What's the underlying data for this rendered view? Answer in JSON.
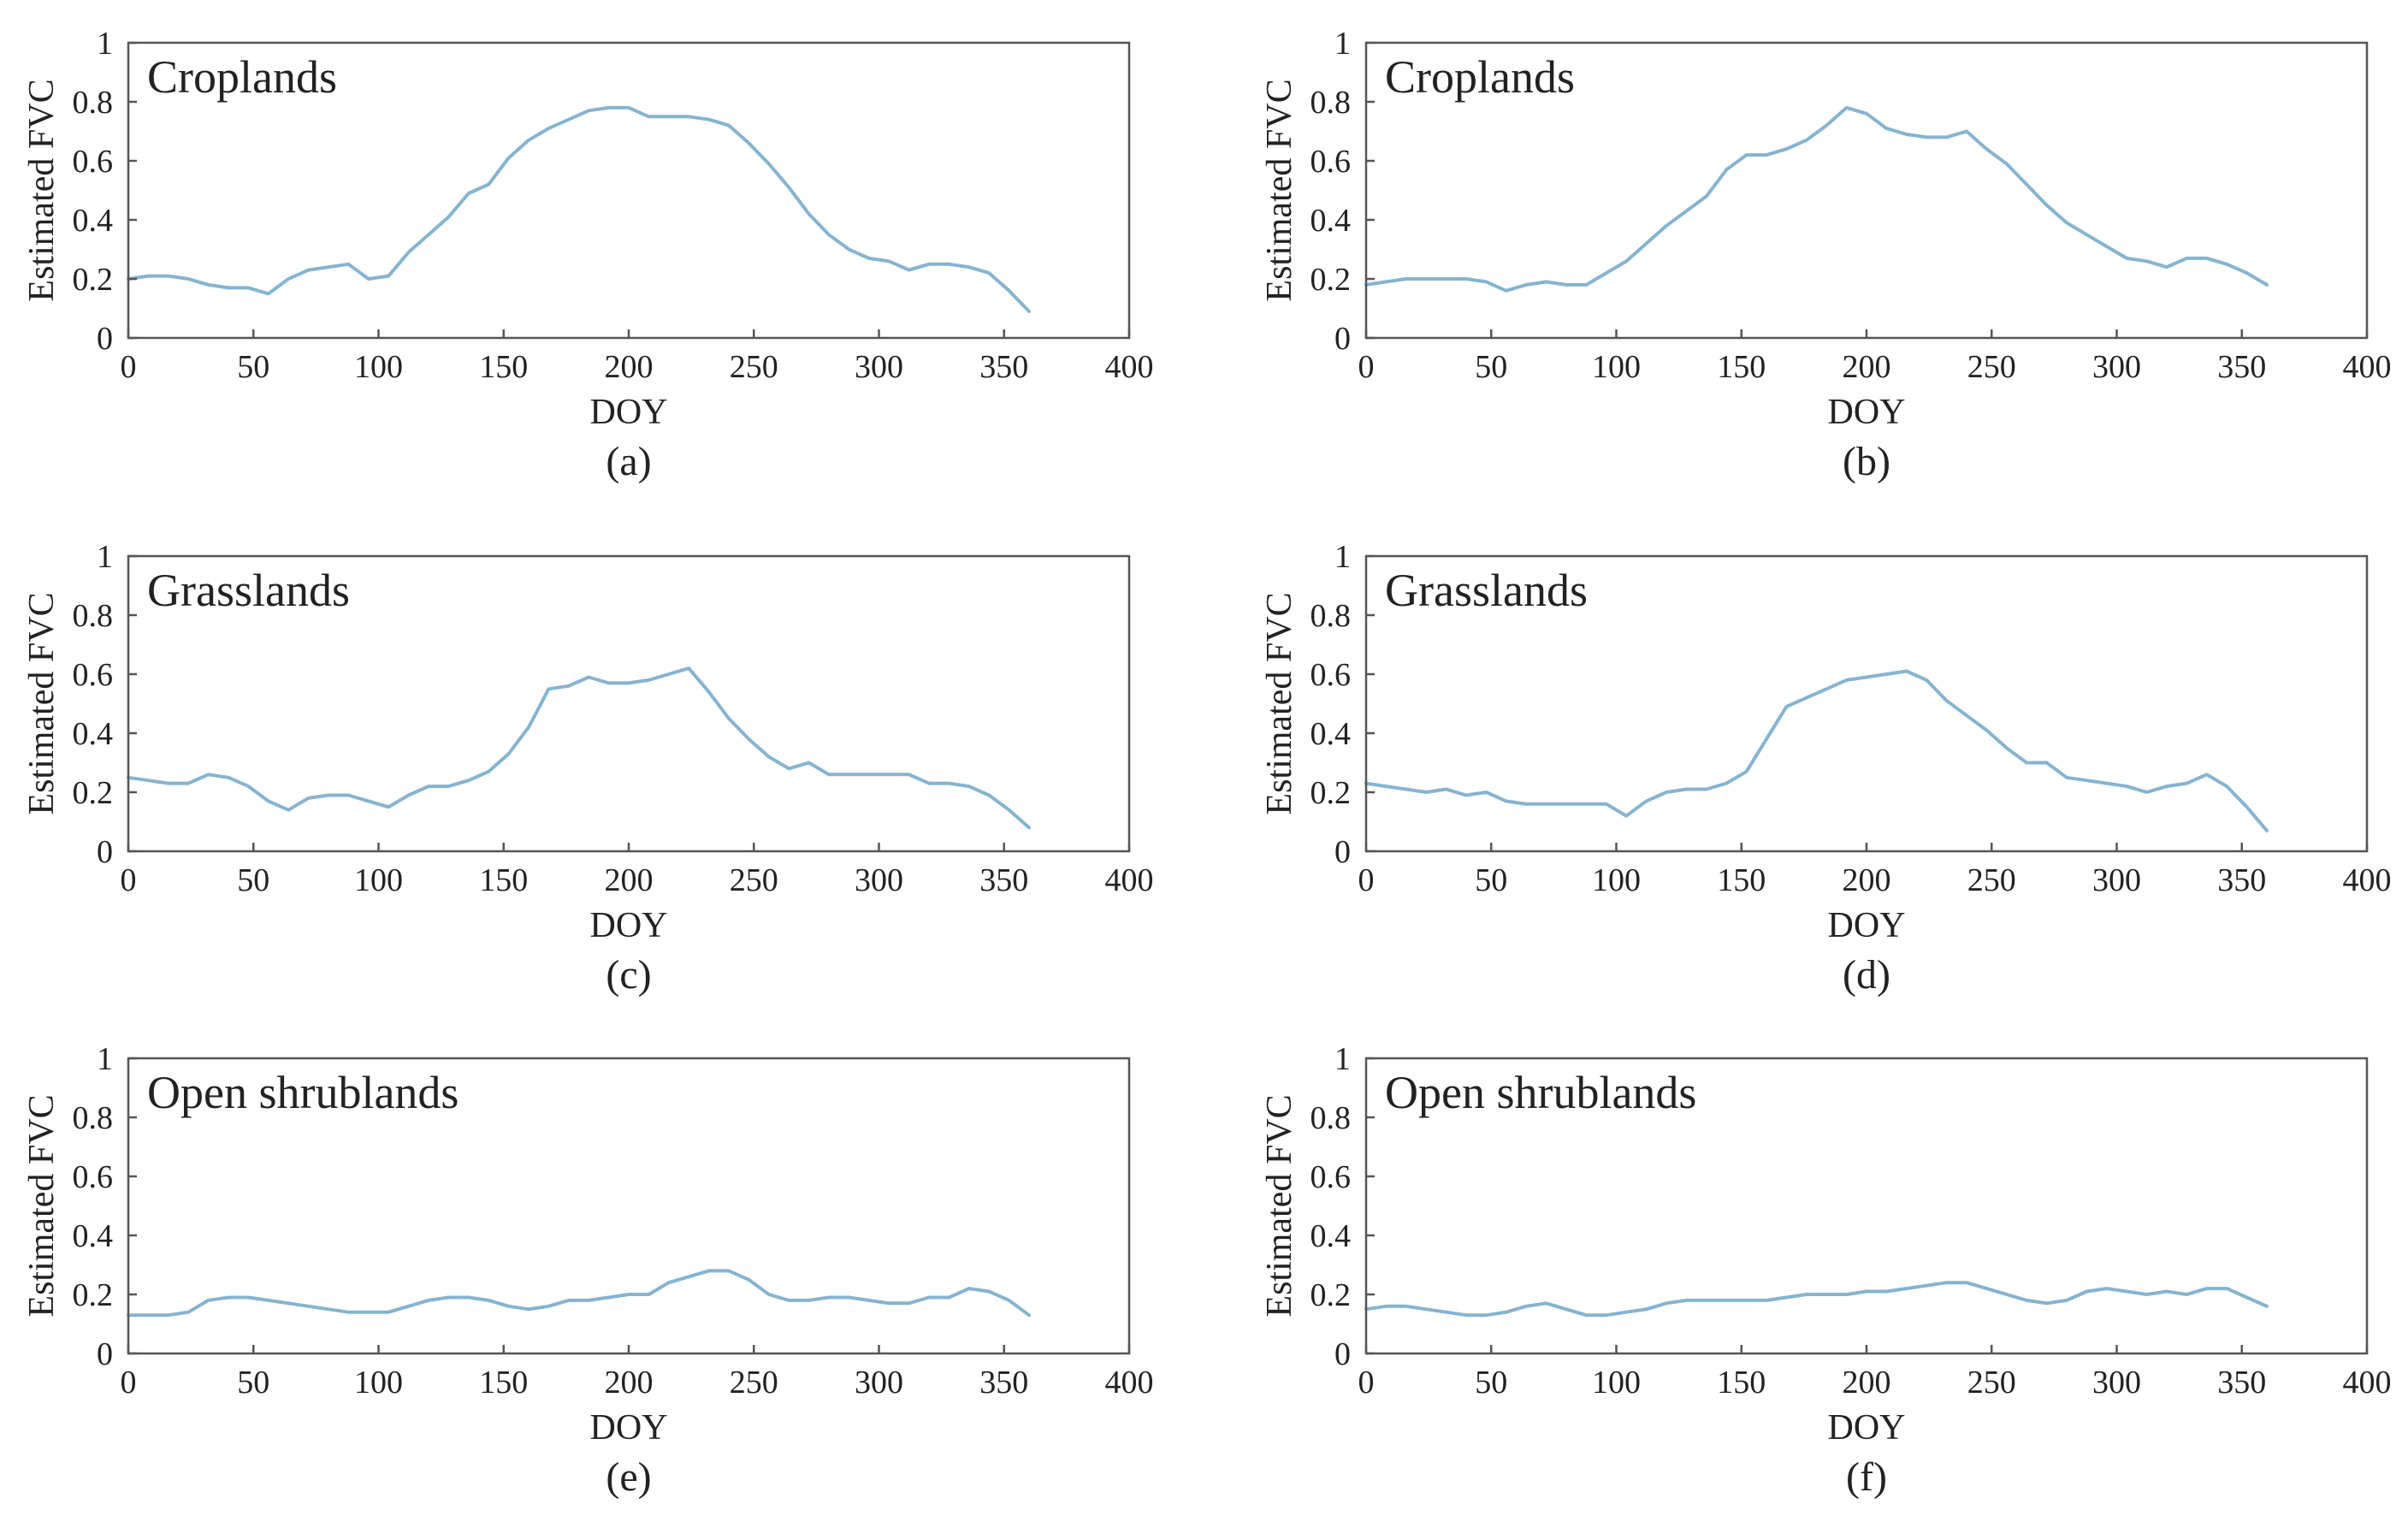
{
  "chart_data": [
    {
      "type": "line",
      "panel_label": "(a)",
      "title": "Croplands",
      "xlabel": "DOY",
      "ylabel": "Estimated FVC",
      "xlim": [
        0,
        400
      ],
      "ylim": [
        0,
        1
      ],
      "xticks": [
        0,
        50,
        100,
        150,
        200,
        250,
        300,
        350,
        400
      ],
      "yticks": [
        0,
        0.2,
        0.4,
        0.6,
        0.8,
        1
      ],
      "ytick_labels": [
        "0",
        "0.2",
        "0.4",
        "0.6",
        "0.8",
        "1"
      ],
      "series": [
        {
          "name": "FVC",
          "x": [
            0,
            8,
            16,
            24,
            32,
            40,
            48,
            56,
            64,
            72,
            80,
            88,
            96,
            104,
            112,
            120,
            128,
            136,
            144,
            152,
            160,
            168,
            176,
            184,
            192,
            200,
            208,
            216,
            224,
            232,
            240,
            248,
            256,
            264,
            272,
            280,
            288,
            296,
            304,
            312,
            320,
            328,
            336,
            344,
            352,
            360
          ],
          "y": [
            0.2,
            0.21,
            0.21,
            0.2,
            0.18,
            0.17,
            0.17,
            0.15,
            0.2,
            0.23,
            0.24,
            0.25,
            0.2,
            0.21,
            0.29,
            0.35,
            0.41,
            0.49,
            0.52,
            0.61,
            0.67,
            0.71,
            0.74,
            0.77,
            0.78,
            0.78,
            0.75,
            0.75,
            0.75,
            0.74,
            0.72,
            0.66,
            0.59,
            0.51,
            0.42,
            0.35,
            0.3,
            0.27,
            0.26,
            0.23,
            0.25,
            0.25,
            0.24,
            0.22,
            0.16,
            0.09
          ]
        }
      ]
    },
    {
      "type": "line",
      "panel_label": "(b)",
      "title": "Croplands",
      "xlabel": "DOY",
      "ylabel": "Estimated FVC",
      "xlim": [
        0,
        400
      ],
      "ylim": [
        0,
        1
      ],
      "xticks": [
        0,
        50,
        100,
        150,
        200,
        250,
        300,
        350,
        400
      ],
      "yticks": [
        0,
        0.2,
        0.4,
        0.6,
        0.8,
        1
      ],
      "ytick_labels": [
        "0",
        "0.2",
        "0.4",
        "0.6",
        "0.8",
        "1"
      ],
      "series": [
        {
          "name": "FVC",
          "x": [
            0,
            8,
            16,
            24,
            32,
            40,
            48,
            56,
            64,
            72,
            80,
            88,
            96,
            104,
            112,
            120,
            128,
            136,
            144,
            152,
            160,
            168,
            176,
            184,
            192,
            200,
            208,
            216,
            224,
            232,
            240,
            248,
            256,
            264,
            272,
            280,
            288,
            296,
            304,
            312,
            320,
            328,
            336,
            344,
            352,
            360
          ],
          "y": [
            0.18,
            0.19,
            0.2,
            0.2,
            0.2,
            0.2,
            0.19,
            0.16,
            0.18,
            0.19,
            0.18,
            0.18,
            0.22,
            0.26,
            0.32,
            0.38,
            0.43,
            0.48,
            0.57,
            0.62,
            0.62,
            0.64,
            0.67,
            0.72,
            0.78,
            0.76,
            0.71,
            0.69,
            0.68,
            0.68,
            0.7,
            0.64,
            0.59,
            0.52,
            0.45,
            0.39,
            0.35,
            0.31,
            0.27,
            0.26,
            0.24,
            0.27,
            0.27,
            0.25,
            0.22,
            0.18
          ]
        }
      ]
    },
    {
      "type": "line",
      "panel_label": "(c)",
      "title": "Grasslands",
      "xlabel": "DOY",
      "ylabel": "Estimated FVC",
      "xlim": [
        0,
        400
      ],
      "ylim": [
        0,
        1
      ],
      "xticks": [
        0,
        50,
        100,
        150,
        200,
        250,
        300,
        350,
        400
      ],
      "yticks": [
        0,
        0.2,
        0.4,
        0.6,
        0.8,
        1
      ],
      "ytick_labels": [
        "0",
        "0.2",
        "0.4",
        "0.6",
        "0.8",
        "1"
      ],
      "series": [
        {
          "name": "FVC",
          "x": [
            0,
            8,
            16,
            24,
            32,
            40,
            48,
            56,
            64,
            72,
            80,
            88,
            96,
            104,
            112,
            120,
            128,
            136,
            144,
            152,
            160,
            168,
            176,
            184,
            192,
            200,
            208,
            216,
            224,
            232,
            240,
            248,
            256,
            264,
            272,
            280,
            288,
            296,
            304,
            312,
            320,
            328,
            336,
            344,
            352,
            360
          ],
          "y": [
            0.25,
            0.24,
            0.23,
            0.23,
            0.26,
            0.25,
            0.22,
            0.17,
            0.14,
            0.18,
            0.19,
            0.19,
            0.17,
            0.15,
            0.19,
            0.22,
            0.22,
            0.24,
            0.27,
            0.33,
            0.42,
            0.55,
            0.56,
            0.59,
            0.57,
            0.57,
            0.58,
            0.6,
            0.62,
            0.54,
            0.45,
            0.38,
            0.32,
            0.28,
            0.3,
            0.26,
            0.26,
            0.26,
            0.26,
            0.26,
            0.23,
            0.23,
            0.22,
            0.19,
            0.14,
            0.08
          ]
        }
      ]
    },
    {
      "type": "line",
      "panel_label": "(d)",
      "title": "Grasslands",
      "xlabel": "DOY",
      "ylabel": "Estimated FVC",
      "xlim": [
        0,
        400
      ],
      "ylim": [
        0,
        1
      ],
      "xticks": [
        0,
        50,
        100,
        150,
        200,
        250,
        300,
        350,
        400
      ],
      "yticks": [
        0,
        0.2,
        0.4,
        0.6,
        0.8,
        1
      ],
      "ytick_labels": [
        "0",
        "0.2",
        "0.4",
        "0.6",
        "0.8",
        "1"
      ],
      "series": [
        {
          "name": "FVC",
          "x": [
            0,
            8,
            16,
            24,
            32,
            40,
            48,
            56,
            64,
            72,
            80,
            88,
            96,
            104,
            112,
            120,
            128,
            136,
            144,
            152,
            160,
            168,
            176,
            184,
            192,
            200,
            208,
            216,
            224,
            232,
            240,
            248,
            256,
            264,
            272,
            280,
            288,
            296,
            304,
            312,
            320,
            328,
            336,
            344,
            352,
            360
          ],
          "y": [
            0.23,
            0.22,
            0.21,
            0.2,
            0.21,
            0.19,
            0.2,
            0.17,
            0.16,
            0.16,
            0.16,
            0.16,
            0.16,
            0.12,
            0.17,
            0.2,
            0.21,
            0.21,
            0.23,
            0.27,
            0.38,
            0.49,
            0.52,
            0.55,
            0.58,
            0.59,
            0.6,
            0.61,
            0.58,
            0.51,
            0.46,
            0.41,
            0.35,
            0.3,
            0.3,
            0.25,
            0.24,
            0.23,
            0.22,
            0.2,
            0.22,
            0.23,
            0.26,
            0.22,
            0.15,
            0.07
          ]
        }
      ]
    },
    {
      "type": "line",
      "panel_label": "(e)",
      "title": "Open shrublands",
      "xlabel": "DOY",
      "ylabel": "Estimated FVC",
      "xlim": [
        0,
        400
      ],
      "ylim": [
        0,
        1
      ],
      "xticks": [
        0,
        50,
        100,
        150,
        200,
        250,
        300,
        350,
        400
      ],
      "yticks": [
        0,
        0.2,
        0.4,
        0.6,
        0.8,
        1
      ],
      "ytick_labels": [
        "0",
        "0.2",
        "0.4",
        "0.6",
        "0.8",
        "1"
      ],
      "series": [
        {
          "name": "FVC",
          "x": [
            0,
            8,
            16,
            24,
            32,
            40,
            48,
            56,
            64,
            72,
            80,
            88,
            96,
            104,
            112,
            120,
            128,
            136,
            144,
            152,
            160,
            168,
            176,
            184,
            192,
            200,
            208,
            216,
            224,
            232,
            240,
            248,
            256,
            264,
            272,
            280,
            288,
            296,
            304,
            312,
            320,
            328,
            336,
            344,
            352,
            360
          ],
          "y": [
            0.13,
            0.13,
            0.13,
            0.14,
            0.18,
            0.19,
            0.19,
            0.18,
            0.17,
            0.16,
            0.15,
            0.14,
            0.14,
            0.14,
            0.16,
            0.18,
            0.19,
            0.19,
            0.18,
            0.16,
            0.15,
            0.16,
            0.18,
            0.18,
            0.19,
            0.2,
            0.2,
            0.24,
            0.26,
            0.28,
            0.28,
            0.25,
            0.2,
            0.18,
            0.18,
            0.19,
            0.19,
            0.18,
            0.17,
            0.17,
            0.19,
            0.19,
            0.22,
            0.21,
            0.18,
            0.13
          ]
        }
      ]
    },
    {
      "type": "line",
      "panel_label": "(f)",
      "title": "Open shrublands",
      "xlabel": "DOY",
      "ylabel": "Estimated FVC",
      "xlim": [
        0,
        400
      ],
      "ylim": [
        0,
        1
      ],
      "xticks": [
        0,
        50,
        100,
        150,
        200,
        250,
        300,
        350,
        400
      ],
      "yticks": [
        0,
        0.2,
        0.4,
        0.6,
        0.8,
        1
      ],
      "ytick_labels": [
        "0",
        "0.2",
        "0.4",
        "0.6",
        "0.8",
        "1"
      ],
      "series": [
        {
          "name": "FVC",
          "x": [
            0,
            8,
            16,
            24,
            32,
            40,
            48,
            56,
            64,
            72,
            80,
            88,
            96,
            104,
            112,
            120,
            128,
            136,
            144,
            152,
            160,
            168,
            176,
            184,
            192,
            200,
            208,
            216,
            224,
            232,
            240,
            248,
            256,
            264,
            272,
            280,
            288,
            296,
            304,
            312,
            320,
            328,
            336,
            344,
            352,
            360
          ],
          "y": [
            0.15,
            0.16,
            0.16,
            0.15,
            0.14,
            0.13,
            0.13,
            0.14,
            0.16,
            0.17,
            0.15,
            0.13,
            0.13,
            0.14,
            0.15,
            0.17,
            0.18,
            0.18,
            0.18,
            0.18,
            0.18,
            0.19,
            0.2,
            0.2,
            0.2,
            0.21,
            0.21,
            0.22,
            0.23,
            0.24,
            0.24,
            0.22,
            0.2,
            0.18,
            0.17,
            0.18,
            0.21,
            0.22,
            0.21,
            0.2,
            0.21,
            0.2,
            0.22,
            0.22,
            0.19,
            0.16
          ]
        }
      ]
    }
  ],
  "colors": {
    "line": "#86b4d0",
    "axis": "#555555",
    "text": "#222222"
  }
}
